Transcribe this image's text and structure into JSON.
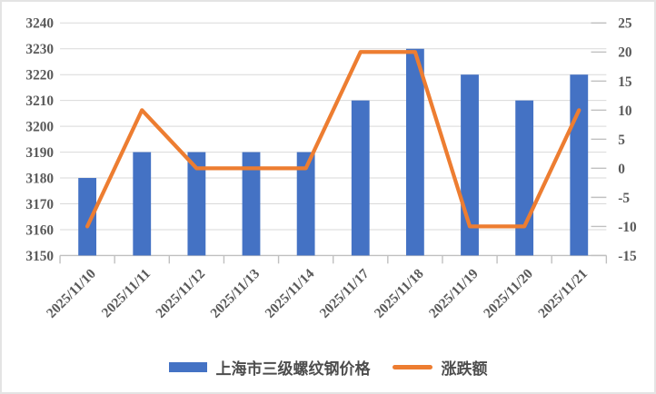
{
  "chart_data": {
    "type": "combo",
    "title": "",
    "categories": [
      "2025/11/10",
      "2025/11/11",
      "2025/11/12",
      "2025/11/13",
      "2025/11/14",
      "2025/11/17",
      "2025/11/18",
      "2025/11/19",
      "2025/11/20",
      "2025/11/21"
    ],
    "series": [
      {
        "name": "上海市三级螺纹钢价格",
        "type": "bar",
        "axis": "left",
        "color": "#4472C4",
        "values": [
          3180,
          3190,
          3190,
          3190,
          3190,
          3210,
          3230,
          3220,
          3210,
          3220
        ]
      },
      {
        "name": "涨跌额",
        "type": "line",
        "axis": "right",
        "color": "#ED7D31",
        "values": [
          -10,
          10,
          0,
          0,
          0,
          20,
          20,
          -10,
          -10,
          10
        ]
      }
    ],
    "left_axis": {
      "min": 3150,
      "max": 3240,
      "step": 10,
      "tick_labels": [
        "3240",
        "3230",
        "3220",
        "3210",
        "3200",
        "3190",
        "3180",
        "3170",
        "3160",
        "3150"
      ]
    },
    "right_axis": {
      "min": -15,
      "max": 25,
      "step": 5,
      "tick_labels": [
        "25",
        "20",
        "15",
        "10",
        "5",
        "0",
        "-5",
        "-10",
        "-15"
      ]
    },
    "grid": true,
    "legend_position": "bottom"
  },
  "colors": {
    "bar": "#4472C4",
    "line": "#ED7D31",
    "gridline": "#D9D9D9",
    "axis": "#C0C0C0",
    "tick_text": "#595959",
    "legend_text": "#4d4d4d"
  }
}
